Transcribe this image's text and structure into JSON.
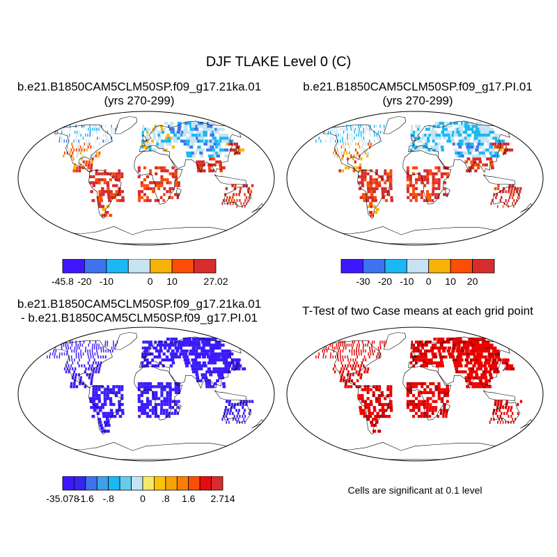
{
  "figure": {
    "title": "DJF TLAKE Level 0 (C)",
    "note": "Cells are significant at 0.1 level"
  },
  "chart_data": [
    {
      "type": "heatmap",
      "panel": "top-left",
      "title_line1": "b.e21.B1850CAM5CLM50SP.f09_g17.21ka.01",
      "title_line2": "(yrs 270-299)",
      "colorbar": {
        "colors": [
          "#3f17ff",
          "#3d73ee",
          "#1bb8f5",
          "#c5e3f2",
          "#f9b208",
          "#fb4d05",
          "#d72c2c"
        ],
        "labels": [
          "-45.8",
          "-20",
          "-10",
          "0",
          "10",
          "27.02"
        ],
        "edge_labels": true,
        "vmin": -45.8,
        "vmax": 27.02
      }
    },
    {
      "type": "heatmap",
      "panel": "top-right",
      "title_line1": "b.e21.B1850CAM5CLM50SP.f09_g17.PI.01",
      "title_line2": "(yrs 270-299)",
      "colorbar": {
        "colors": [
          "#3f17ff",
          "#3d73ee",
          "#1bb8f5",
          "#c5e3f2",
          "#f9b208",
          "#fb4d05",
          "#d72c2c"
        ],
        "labels": [
          "-30",
          "-20",
          "-10",
          "0",
          "10",
          "20"
        ],
        "edge_labels": false
      }
    },
    {
      "type": "heatmap",
      "panel": "bottom-left",
      "title_line1": "b.e21.B1850CAM5CLM50SP.f09_g17.21ka.01",
      "title_line2": "- b.e21.B1850CAM5CLM50SP.f09_g17.PI.01",
      "colorbar": {
        "colors": [
          "#3f17ff",
          "#3525f0",
          "#3d73ee",
          "#3ca0ea",
          "#1bb8f5",
          "#66ccee",
          "#c5e3f2",
          "#f5e96a",
          "#f9c408",
          "#f9a208",
          "#fb7d05",
          "#fb4d05",
          "#e40c0c",
          "#d72c2c"
        ],
        "labels": [
          "-35.078",
          "-1.6",
          "-.8",
          "0",
          ".8",
          "1.6",
          "2.714"
        ],
        "edge_labels": true
      }
    },
    {
      "type": "heatmap",
      "panel": "bottom-right",
      "title_line1": "T-Test of two Case means at each grid point",
      "title_line2": "",
      "colorbar": null
    }
  ]
}
